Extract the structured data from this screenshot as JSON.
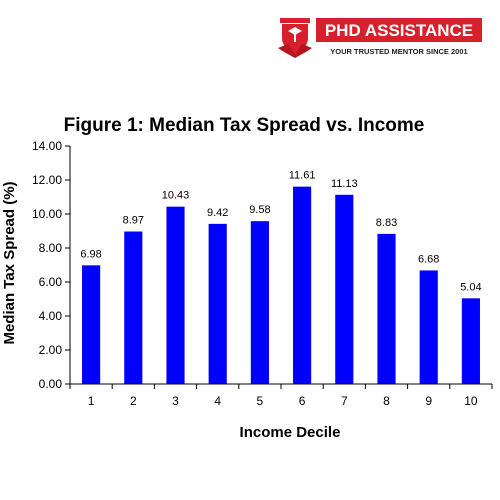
{
  "brand": {
    "name": "PHD ASSISTANCE",
    "tagline": "YOUR TRUSTED MENTOR SINCE 2001",
    "color": "#d7202b"
  },
  "chart_data": {
    "type": "bar",
    "title": "Figure 1:  Median Tax Spread vs. Income",
    "xlabel": "Income Decile",
    "ylabel": "Median Tax Spread (%)",
    "categories": [
      "1",
      "2",
      "3",
      "4",
      "5",
      "6",
      "7",
      "8",
      "9",
      "10"
    ],
    "values": [
      6.98,
      8.97,
      10.43,
      9.42,
      9.58,
      11.61,
      11.13,
      8.83,
      6.68,
      5.04
    ],
    "value_labels": [
      "6.98",
      "8.97",
      "10.43",
      "9.42",
      "9.58",
      "11.61",
      "11.13",
      "8.83",
      "6.68",
      "5.04"
    ],
    "ylim": [
      0,
      14
    ],
    "yticks": [
      "0.00",
      "2.00",
      "4.00",
      "6.00",
      "8.00",
      "10.00",
      "12.00",
      "14.00"
    ],
    "ytick_values": [
      0,
      2,
      4,
      6,
      8,
      10,
      12,
      14
    ],
    "bar_color": "#0000ff",
    "grid": false,
    "legend": "none"
  }
}
